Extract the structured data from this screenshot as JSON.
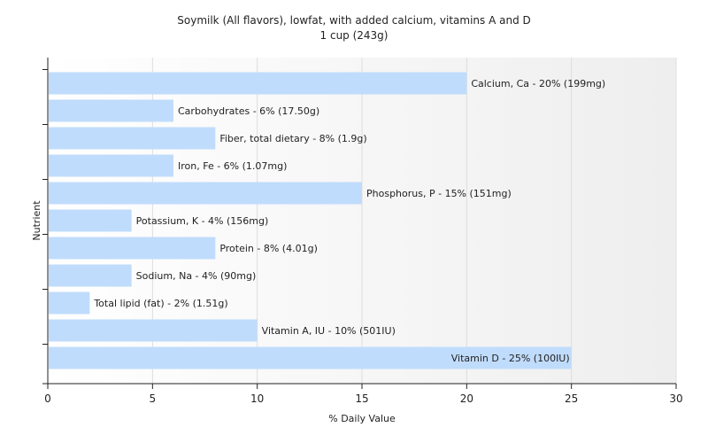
{
  "chart_data": {
    "type": "bar",
    "orientation": "horizontal",
    "title": "Soymilk (All flavors), lowfat, with added calcium, vitamins A and D",
    "subtitle": "1 cup (243g)",
    "xlabel": "% Daily Value",
    "ylabel": "Nutrient",
    "xlim": [
      0,
      30
    ],
    "xticks": [
      "0",
      "5",
      "10",
      "15",
      "20",
      "25",
      "30"
    ],
    "grid": true,
    "legend": "none",
    "bar_color": "#c0dcfc",
    "categories": [
      "Calcium, Ca",
      "Carbohydrates",
      "Fiber, total dietary",
      "Iron, Fe",
      "Phosphorus, P",
      "Potassium, K",
      "Protein",
      "Sodium, Na",
      "Total lipid (fat)",
      "Vitamin A, IU",
      "Vitamin D"
    ],
    "values": [
      20,
      6,
      8,
      6,
      15,
      4,
      8,
      4,
      2,
      10,
      25
    ],
    "data_labels": [
      "Calcium, Ca - 20% (199mg)",
      "Carbohydrates - 6% (17.50g)",
      "Fiber, total dietary - 8% (1.9g)",
      "Iron, Fe - 6% (1.07mg)",
      "Phosphorus, P - 15% (151mg)",
      "Potassium, K - 4% (156mg)",
      "Protein - 8% (4.01g)",
      "Sodium, Na - 4% (90mg)",
      "Total lipid (fat) - 2% (1.51g)",
      "Vitamin A, IU - 10% (501IU)",
      "Vitamin D - 25% (100IU)"
    ]
  }
}
